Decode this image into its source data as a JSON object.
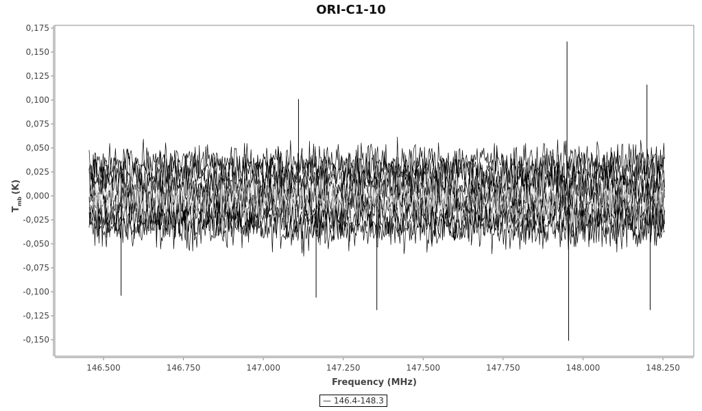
{
  "chart_data": {
    "type": "line",
    "title": "ORI-C1-10",
    "xlabel": "Frequency (MHz)",
    "ylabel": "T",
    "ylabel_sub": "mb",
    "ylabel_unit": "(K)",
    "xlim": [
      146.4,
      148.3
    ],
    "ylim": [
      -0.165,
      0.18
    ],
    "x_ticks": [
      "146.500",
      "146.750",
      "147.000",
      "147.250",
      "147.500",
      "147.750",
      "148.000",
      "148.250"
    ],
    "x_tick_values": [
      146.5,
      146.75,
      147.0,
      147.25,
      147.5,
      147.75,
      148.0,
      148.25
    ],
    "y_ticks": [
      "0,175",
      "0,150",
      "0,125",
      "0,100",
      "0,075",
      "0,050",
      "0,025",
      "0,000",
      "-0,025",
      "-0,050",
      "-0,075",
      "-0,100",
      "-0,125",
      "-0,150"
    ],
    "y_tick_values": [
      0.175,
      0.15,
      0.125,
      0.1,
      0.075,
      0.05,
      0.025,
      0,
      -0.025,
      -0.05,
      -0.075,
      -0.1,
      -0.125,
      -0.15
    ],
    "grid": false,
    "legend_position": "bottom",
    "series": [
      {
        "name": "146.4-148.3",
        "color": "#000000",
        "x_range": [
          146.455,
          148.255
        ],
        "noise_band": [
          -0.08,
          0.08
        ],
        "spikes": [
          {
            "x": 147.95,
            "y": 0.161
          },
          {
            "x": 147.955,
            "y": -0.151
          },
          {
            "x": 148.2,
            "y": 0.116
          },
          {
            "x": 148.21,
            "y": -0.119
          },
          {
            "x": 147.355,
            "y": -0.119
          },
          {
            "x": 146.555,
            "y": -0.104
          },
          {
            "x": 147.165,
            "y": -0.106
          },
          {
            "x": 147.11,
            "y": 0.101
          }
        ]
      }
    ]
  }
}
